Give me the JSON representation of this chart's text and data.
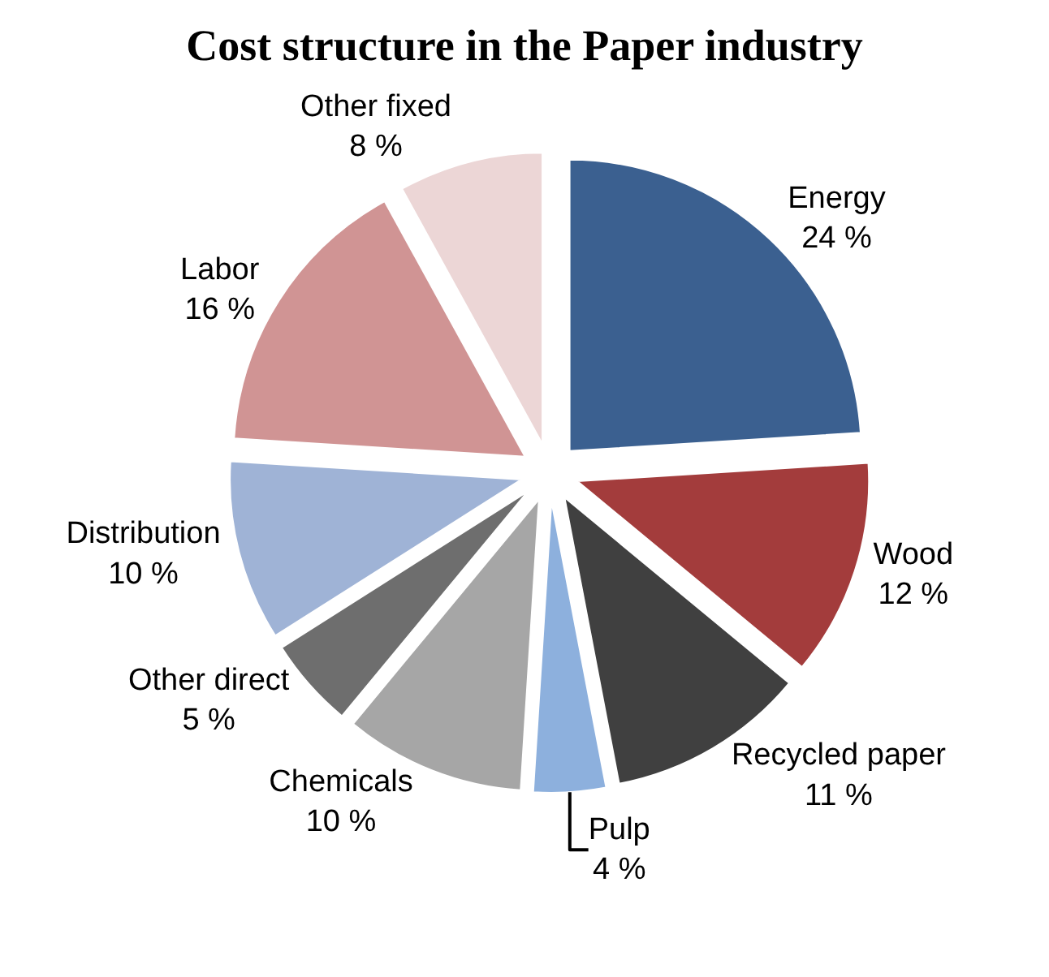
{
  "chart_data": {
    "type": "pie",
    "title": "Cost structure in the Paper industry",
    "categories": [
      "Energy",
      "Wood",
      "Recycled paper",
      "Pulp",
      "Chemicals",
      "Other direct",
      "Distribution",
      "Labor",
      "Other fixed"
    ],
    "values": [
      24,
      12,
      11,
      4,
      10,
      5,
      10,
      16,
      8
    ],
    "value_labels": [
      "24 %",
      "12 %",
      "11 %",
      "4 %",
      "10 %",
      "5 %",
      "10 %",
      "16 %",
      "8 %"
    ],
    "colors": [
      "#3b6090",
      "#a33c3c",
      "#404040",
      "#8db0dd",
      "#a6a6a6",
      "#6e6e6e",
      "#9fb3d6",
      "#d09494",
      "#ecd6d6"
    ],
    "legend": false
  }
}
